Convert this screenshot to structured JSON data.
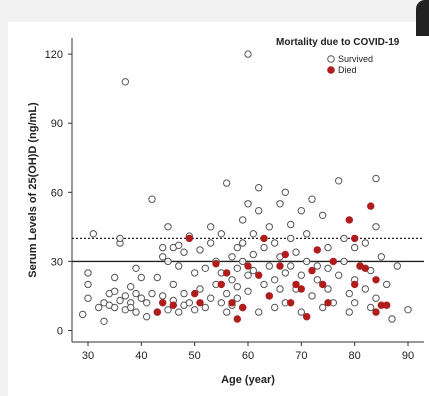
{
  "chart_data": {
    "type": "scatter",
    "title": "",
    "xlabel": "Age (year)",
    "ylabel": "Serum Levels of 25(OH)D (ng/mL)",
    "xlim": [
      27,
      93
    ],
    "ylim": [
      -5,
      127
    ],
    "xticks": [
      30,
      40,
      50,
      60,
      70,
      80,
      90
    ],
    "yticks": [
      0,
      30,
      60,
      90,
      120
    ],
    "reference_lines": [
      {
        "y": 40,
        "style": "dotted"
      },
      {
        "y": 30,
        "style": "solid"
      }
    ],
    "legend": {
      "title": "Mortality due to COVID-19",
      "position": "top-right"
    },
    "series": [
      {
        "name": "Survived",
        "marker": "open-circle",
        "color": "#555555",
        "points": [
          [
            29,
            7
          ],
          [
            30,
            14
          ],
          [
            30,
            20
          ],
          [
            30,
            25
          ],
          [
            31,
            42
          ],
          [
            32,
            10
          ],
          [
            33,
            4
          ],
          [
            33,
            12
          ],
          [
            34,
            16
          ],
          [
            34,
            11
          ],
          [
            35,
            23
          ],
          [
            35,
            17
          ],
          [
            35,
            10
          ],
          [
            36,
            38
          ],
          [
            36,
            13
          ],
          [
            36,
            40
          ],
          [
            37,
            108
          ],
          [
            37,
            9
          ],
          [
            37,
            15
          ],
          [
            38,
            19
          ],
          [
            38,
            12
          ],
          [
            38,
            10
          ],
          [
            39,
            27
          ],
          [
            39,
            16
          ],
          [
            39,
            8
          ],
          [
            40,
            14
          ],
          [
            40,
            23
          ],
          [
            41,
            6
          ],
          [
            41,
            12
          ],
          [
            42,
            57
          ],
          [
            42,
            16
          ],
          [
            43,
            23
          ],
          [
            43,
            8
          ],
          [
            44,
            15
          ],
          [
            44,
            36
          ],
          [
            44,
            32
          ],
          [
            45,
            9
          ],
          [
            45,
            30
          ],
          [
            45,
            45
          ],
          [
            46,
            13
          ],
          [
            46,
            36
          ],
          [
            46,
            20
          ],
          [
            47,
            28
          ],
          [
            47,
            8
          ],
          [
            47,
            37
          ],
          [
            48,
            11
          ],
          [
            48,
            16
          ],
          [
            48,
            34
          ],
          [
            49,
            12
          ],
          [
            49,
            41
          ],
          [
            50,
            25
          ],
          [
            50,
            9
          ],
          [
            51,
            18
          ],
          [
            51,
            35
          ],
          [
            52,
            27
          ],
          [
            52,
            10
          ],
          [
            53,
            14
          ],
          [
            53,
            45
          ],
          [
            53,
            38
          ],
          [
            54,
            20
          ],
          [
            54,
            30
          ],
          [
            55,
            12
          ],
          [
            55,
            25
          ],
          [
            55,
            42
          ],
          [
            56,
            64
          ],
          [
            56,
            16
          ],
          [
            56,
            8
          ],
          [
            57,
            32
          ],
          [
            57,
            11
          ],
          [
            57,
            22
          ],
          [
            58,
            36
          ],
          [
            58,
            14
          ],
          [
            58,
            27
          ],
          [
            58,
            19
          ],
          [
            59,
            48
          ],
          [
            59,
            10
          ],
          [
            59,
            38
          ],
          [
            59,
            30
          ],
          [
            60,
            55
          ],
          [
            60,
            120
          ],
          [
            60,
            24
          ],
          [
            60,
            17
          ],
          [
            61,
            42
          ],
          [
            61,
            33
          ],
          [
            61,
            26
          ],
          [
            62,
            8
          ],
          [
            62,
            52
          ],
          [
            62,
            62
          ],
          [
            63,
            20
          ],
          [
            63,
            36
          ],
          [
            64,
            45
          ],
          [
            64,
            28
          ],
          [
            64,
            15
          ],
          [
            65,
            38
          ],
          [
            65,
            22
          ],
          [
            65,
            10
          ],
          [
            66,
            32
          ],
          [
            66,
            18
          ],
          [
            66,
            55
          ],
          [
            67,
            60
          ],
          [
            67,
            25
          ],
          [
            67,
            12
          ],
          [
            68,
            40
          ],
          [
            68,
            46
          ],
          [
            68,
            28
          ],
          [
            69,
            34
          ],
          [
            69,
            18
          ],
          [
            70,
            52
          ],
          [
            70,
            24
          ],
          [
            70,
            8
          ],
          [
            71,
            30
          ],
          [
            71,
            42
          ],
          [
            72,
            15
          ],
          [
            72,
            57
          ],
          [
            73,
            22
          ],
          [
            73,
            28
          ],
          [
            74,
            10
          ],
          [
            74,
            50
          ],
          [
            75,
            36
          ],
          [
            75,
            27
          ],
          [
            75,
            18
          ],
          [
            76,
            12
          ],
          [
            77,
            65
          ],
          [
            77,
            24
          ],
          [
            78,
            40
          ],
          [
            78,
            30
          ],
          [
            79,
            8
          ],
          [
            79,
            16
          ],
          [
            80,
            36
          ],
          [
            80,
            22
          ],
          [
            80,
            12
          ],
          [
            81,
            28
          ],
          [
            82,
            18
          ],
          [
            82,
            38
          ],
          [
            83,
            10
          ],
          [
            83,
            26
          ],
          [
            84,
            66
          ],
          [
            84,
            45
          ],
          [
            84,
            14
          ],
          [
            85,
            32
          ],
          [
            86,
            20
          ],
          [
            87,
            5
          ],
          [
            88,
            28
          ],
          [
            90,
            9
          ]
        ]
      },
      {
        "name": "Died",
        "marker": "filled-circle",
        "color": "#b01c1c",
        "points": [
          [
            43,
            8
          ],
          [
            44,
            12
          ],
          [
            46,
            11
          ],
          [
            49,
            40
          ],
          [
            50,
            16
          ],
          [
            51,
            12
          ],
          [
            54,
            29
          ],
          [
            55,
            20
          ],
          [
            56,
            25
          ],
          [
            57,
            12
          ],
          [
            58,
            5
          ],
          [
            59,
            10
          ],
          [
            60,
            28
          ],
          [
            62,
            24
          ],
          [
            63,
            40
          ],
          [
            64,
            15
          ],
          [
            66,
            28
          ],
          [
            67,
            33
          ],
          [
            68,
            12
          ],
          [
            69,
            20
          ],
          [
            70,
            18
          ],
          [
            71,
            6
          ],
          [
            72,
            26
          ],
          [
            73,
            35
          ],
          [
            74,
            20
          ],
          [
            75,
            12
          ],
          [
            76,
            30
          ],
          [
            79,
            48
          ],
          [
            80,
            40
          ],
          [
            80,
            20
          ],
          [
            81,
            28
          ],
          [
            82,
            27
          ],
          [
            83,
            54
          ],
          [
            84,
            8
          ],
          [
            84,
            22
          ],
          [
            85,
            11
          ],
          [
            86,
            11
          ]
        ]
      }
    ]
  }
}
